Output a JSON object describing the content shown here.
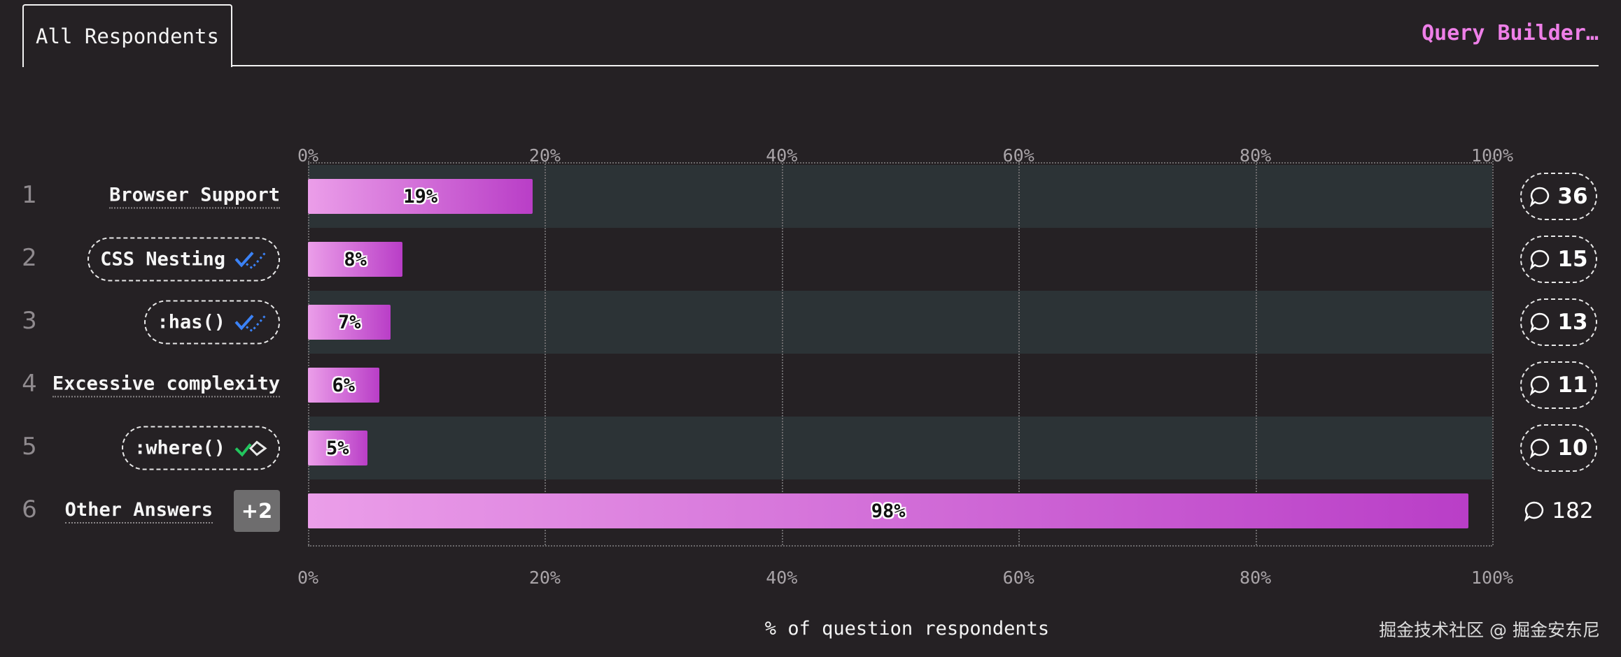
{
  "tab": {
    "label": "All Respondents"
  },
  "query_builder": {
    "label": "Query Builder…"
  },
  "watermark": "掘金技术社区 @ 掘金安东尼",
  "colors": {
    "background": "#252124",
    "accent": "#ee7fe8",
    "bar_start": "#eb9ee9",
    "bar_end": "#b93ec7",
    "row_band": "#2c3336",
    "check_blue": "#3b82f6",
    "check_green": "#22c55e"
  },
  "chart_data": {
    "type": "bar",
    "orientation": "horizontal",
    "xlabel": "% of question respondents",
    "xlim": [
      0,
      100
    ],
    "x_ticks": [
      "0%",
      "20%",
      "40%",
      "60%",
      "80%",
      "100%"
    ],
    "grid": true,
    "categories": [
      "Browser Support",
      "CSS Nesting",
      ":has()",
      "Excessive complexity",
      ":where()",
      "Other Answers"
    ],
    "ranks": [
      "1",
      "2",
      "3",
      "4",
      "5",
      "6"
    ],
    "values": [
      19,
      8,
      7,
      6,
      5,
      98
    ],
    "value_labels": [
      "19%",
      "8%",
      "7%",
      "6%",
      "5%",
      "98%"
    ],
    "comment_counts": [
      "36",
      "15",
      "13",
      "11",
      "10",
      "182"
    ],
    "badges": [
      null,
      "double-check-blue-icon",
      "double-check-blue-icon",
      null,
      "double-check-green-icon",
      "+2"
    ]
  }
}
